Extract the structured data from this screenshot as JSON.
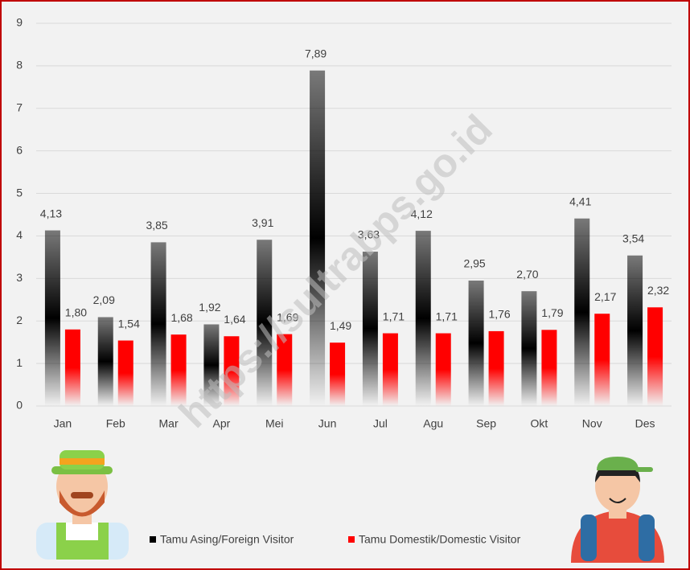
{
  "chart_data": {
    "type": "bar",
    "categories": [
      "Jan",
      "Feb",
      "Mar",
      "Apr",
      "Mei",
      "Jun",
      "Jul",
      "Agu",
      "Sep",
      "Okt",
      "Nov",
      "Des"
    ],
    "series": [
      {
        "name": "Tamu Asing/Foreign Visitor",
        "color": "#000000",
        "values": [
          4.13,
          2.09,
          3.85,
          1.92,
          3.91,
          7.89,
          3.63,
          4.12,
          2.95,
          2.7,
          4.41,
          3.54
        ],
        "value_labels": [
          "4,13",
          "2,09",
          "3,85",
          "1,92",
          "3,91",
          "7,89",
          "3,63",
          "4,12",
          "2,95",
          "2,70",
          "4,41",
          "3,54"
        ]
      },
      {
        "name": "Tamu Domestik/Domestic Visitor",
        "color": "#ff0000",
        "values": [
          1.8,
          1.54,
          1.68,
          1.64,
          1.69,
          1.49,
          1.71,
          1.71,
          1.76,
          1.79,
          2.17,
          2.32
        ],
        "value_labels": [
          "1,80",
          "1,54",
          "1,68",
          "1,64",
          "1,69",
          "1,49",
          "1,71",
          "1,71",
          "1,76",
          "1,79",
          "2,17",
          "2,32"
        ]
      }
    ],
    "ylim": [
      0,
      9
    ],
    "yticks": [
      0,
      1,
      2,
      3,
      4,
      5,
      6,
      7,
      8,
      9
    ],
    "grid": true,
    "legend": "bottom",
    "watermark": "https://sultrabps.go.id"
  }
}
